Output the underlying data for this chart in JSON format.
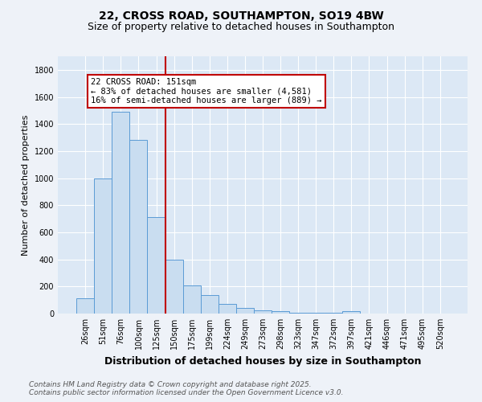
{
  "title_line1": "22, CROSS ROAD, SOUTHAMPTON, SO19 4BW",
  "title_line2": "Size of property relative to detached houses in Southampton",
  "categories": [
    "26sqm",
    "51sqm",
    "76sqm",
    "100sqm",
    "125sqm",
    "150sqm",
    "175sqm",
    "199sqm",
    "224sqm",
    "249sqm",
    "273sqm",
    "298sqm",
    "323sqm",
    "347sqm",
    "372sqm",
    "397sqm",
    "421sqm",
    "446sqm",
    "471sqm",
    "495sqm",
    "520sqm"
  ],
  "values": [
    110,
    1000,
    1490,
    1280,
    710,
    400,
    210,
    135,
    70,
    40,
    25,
    15,
    8,
    5,
    3,
    15,
    2,
    1,
    1,
    1,
    1
  ],
  "bar_color": "#c9ddf0",
  "bar_edge_color": "#5b9bd5",
  "highlight_line_color": "#c00000",
  "annotation_text": "22 CROSS ROAD: 151sqm\n← 83% of detached houses are smaller (4,581)\n16% of semi-detached houses are larger (889) →",
  "annotation_box_color": "#ffffff",
  "annotation_box_edge_color": "#c00000",
  "ylabel": "Number of detached properties",
  "xlabel": "Distribution of detached houses by size in Southampton",
  "ylim": [
    0,
    1900
  ],
  "yticks": [
    0,
    200,
    400,
    600,
    800,
    1000,
    1200,
    1400,
    1600,
    1800
  ],
  "footnote_line1": "Contains HM Land Registry data © Crown copyright and database right 2025.",
  "footnote_line2": "Contains public sector information licensed under the Open Government Licence v3.0.",
  "bg_color": "#eef2f8",
  "plot_bg_color": "#dce8f5",
  "grid_color": "#ffffff",
  "title_fontsize": 10,
  "subtitle_fontsize": 9,
  "ylabel_fontsize": 8,
  "xlabel_fontsize": 9,
  "tick_fontsize": 7,
  "footnote_fontsize": 6.5,
  "annotation_fontsize": 7.5
}
